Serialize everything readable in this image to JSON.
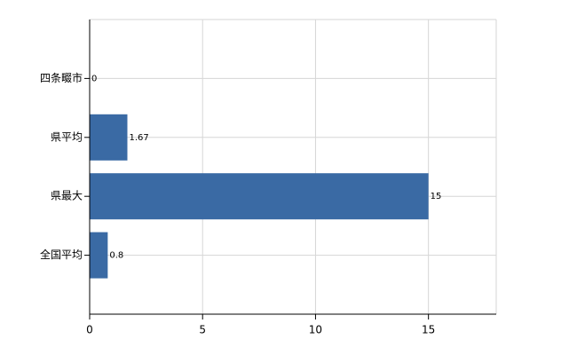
{
  "chart_data": {
    "type": "bar",
    "orientation": "horizontal",
    "categories": [
      "四条畷市",
      "県平均",
      "県最大",
      "全国平均"
    ],
    "values": [
      0,
      1.67,
      15,
      0.8
    ],
    "color": "#3a6aa4",
    "xlim": [
      0,
      18
    ],
    "xticks": [
      0,
      5,
      10,
      15
    ],
    "grid": true
  }
}
